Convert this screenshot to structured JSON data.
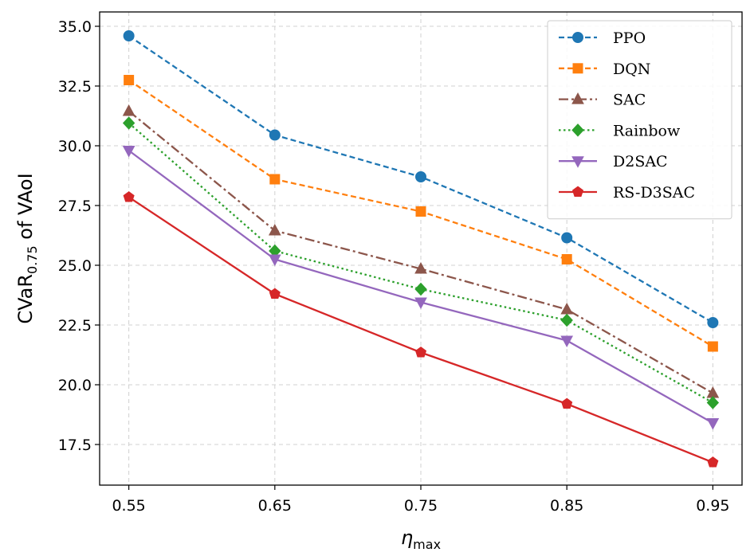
{
  "chart_data": {
    "type": "line",
    "x": [
      0.55,
      0.65,
      0.75,
      0.85,
      0.95
    ],
    "x_tick_labels": [
      "0.55",
      "0.65",
      "0.75",
      "0.85",
      "0.95"
    ],
    "y_ticks": [
      17.5,
      20.0,
      22.5,
      25.0,
      27.5,
      30.0,
      32.5,
      35.0
    ],
    "y_tick_labels": [
      "17.5",
      "20.0",
      "22.5",
      "25.0",
      "27.5",
      "30.0",
      "32.5",
      "35.0"
    ],
    "xlabel": {
      "main": "η",
      "sub": "max"
    },
    "ylabel": {
      "main": "CVaR",
      "sub": "0.75",
      "suffix": " of VAoI"
    },
    "xlim": [
      0.53,
      0.97
    ],
    "ylim": [
      15.8,
      35.6
    ],
    "grid": true,
    "legend_position": "top-right",
    "series": [
      {
        "name": "PPO",
        "values": [
          34.6,
          30.45,
          28.7,
          26.15,
          22.6
        ],
        "color": "#1f77b4",
        "dash": "dashed",
        "marker": "circle"
      },
      {
        "name": "DQN",
        "values": [
          32.75,
          28.6,
          27.25,
          25.25,
          21.6
        ],
        "color": "#ff7f0e",
        "dash": "dashed",
        "marker": "square"
      },
      {
        "name": "SAC",
        "values": [
          31.45,
          26.45,
          24.85,
          23.15,
          19.65
        ],
        "color": "#8c564b",
        "dash": "dashdot",
        "marker": "triangle-up"
      },
      {
        "name": "Rainbow",
        "values": [
          30.95,
          25.6,
          24.0,
          22.7,
          19.25
        ],
        "color": "#2ca02c",
        "dash": "dotted",
        "marker": "diamond"
      },
      {
        "name": "D2SAC",
        "values": [
          29.8,
          25.25,
          23.45,
          21.85,
          18.4
        ],
        "color": "#9467bd",
        "dash": "solid",
        "marker": "triangle-down"
      },
      {
        "name": "RS-D3SAC",
        "values": [
          27.85,
          23.8,
          21.35,
          19.2,
          16.75
        ],
        "color": "#d62728",
        "dash": "solid",
        "marker": "pentagon"
      }
    ]
  }
}
